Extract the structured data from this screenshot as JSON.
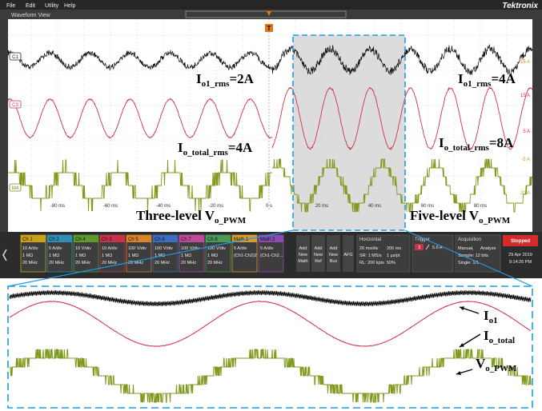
{
  "menu": [
    "File",
    "Edit",
    "Utility",
    "Help"
  ],
  "brand": "Tektronix",
  "view_title": "Waveform View",
  "trigger_marker": "T",
  "channel_tags": [
    {
      "text": "C1",
      "color": "#222222"
    },
    {
      "text": "C3",
      "color": "#d0324a"
    },
    {
      "text": "M4",
      "color": "#6e8a1a"
    }
  ],
  "right_labels": [
    {
      "text": "15 A",
      "color": "#e08a1e"
    },
    {
      "text": "15 A",
      "color": "#d0324a"
    },
    {
      "text": "5 A",
      "color": "#d0324a"
    },
    {
      "text": "-5 A",
      "color": "#e08a1e"
    },
    {
      "text": "20 A",
      "color": "#e08a1e"
    }
  ],
  "time_labels": [
    "-80 ms",
    "-60 ms",
    "-40 ms",
    "-20 ms",
    "0 s",
    "20 ms",
    "40 ms",
    "60 ms",
    "80 ms"
  ],
  "annotations": [
    {
      "main": "I",
      "sub": "o1_rms",
      "rest": "=2A"
    },
    {
      "main": "I",
      "sub": "o1_rms",
      "rest": "=4A"
    },
    {
      "main": "I",
      "sub": "o_total_rms",
      "rest": "=4A"
    },
    {
      "main": "I",
      "sub": "o_total_rms",
      "rest": "=8A"
    },
    {
      "main": "Three-level V",
      "sub": "o_PWM",
      "rest": ""
    },
    {
      "main": "Five-level V",
      "sub": "o_PWM",
      "rest": ""
    }
  ],
  "channels": [
    {
      "name": "Ch 1",
      "color": "#c9a21a",
      "lines": [
        "10 A/div",
        "1 MΩ",
        "20 MHz"
      ]
    },
    {
      "name": "Ch 2",
      "color": "#2f8fb5",
      "lines": [
        "5 A/div",
        "1 MΩ",
        "20 MHz"
      ]
    },
    {
      "name": "Ch 4",
      "color": "#5d9a2a",
      "lines": [
        "10 V/div",
        "1 MΩ",
        "20 MHz"
      ]
    },
    {
      "name": "Ch 3",
      "color": "#c8324a",
      "lines": [
        "10 A/div",
        "1 MΩ",
        "20 MHz"
      ]
    },
    {
      "name": "Ch 5",
      "color": "#d8842a",
      "lines": [
        "100 V/div",
        "1 MΩ",
        "20 MHz"
      ]
    },
    {
      "name": "Ch 6",
      "color": "#3a6fc0",
      "lines": [
        "100 V/div",
        "1 MΩ",
        "20 MHz"
      ]
    },
    {
      "name": "Ch 7",
      "color": "#c04a9a",
      "lines": [
        "100 V/div",
        "1 MΩ",
        "20 MHz"
      ]
    },
    {
      "name": "Ch 8",
      "color": "#4a9a5a",
      "lines": [
        "100 V/div",
        "1 MΩ",
        "20 MHz"
      ]
    },
    {
      "name": "Math 1",
      "color": "#d89a2a",
      "lines": [
        "5 A/div",
        "(Ch1-Ch2)2"
      ]
    },
    {
      "name": "Math 2",
      "color": "#8a4ab0",
      "lines": [
        "5 A/div",
        "(Ch1-Ch2..."
      ]
    }
  ],
  "add_buttons": [
    "Add New Math",
    "Add New Ref",
    "Add New Bus"
  ],
  "afg": "AFG",
  "horizontal": {
    "title": "Horizontal",
    "lines": [
      "20 ms/div",
      "200 ms",
      "SR: 1 MS/s",
      "1 µs/pt",
      "RL: 200 kpts",
      "50%"
    ]
  },
  "trigger": {
    "title": "Trigger",
    "source": "3",
    "level": "5.6 A"
  },
  "acquisition": {
    "title": "Acquisition",
    "lines": [
      "Manual,",
      "Analyze",
      "Sample: 12 bits",
      "Single: 1/1"
    ]
  },
  "status": "Stopped",
  "date": "29 Apr 2019",
  "time": "9:14:26 PM",
  "zoom_labels": [
    {
      "main": "I",
      "sub": "o1"
    },
    {
      "main": "I",
      "sub": "o_total"
    },
    {
      "main": "V",
      "sub": "o_PWM"
    }
  ]
}
